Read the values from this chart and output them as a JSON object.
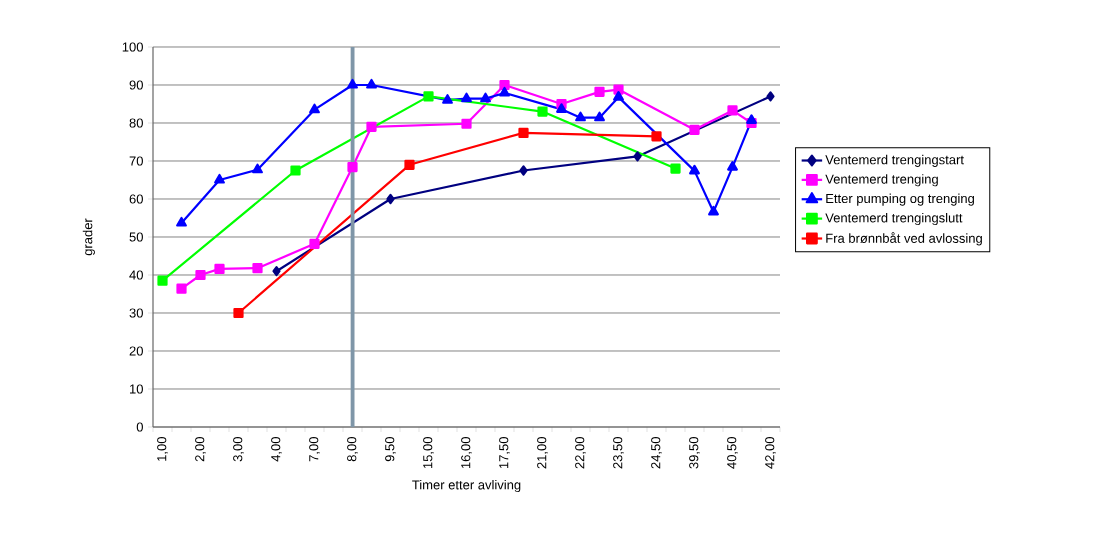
{
  "chart_data": {
    "type": "line",
    "xlabel": "Timer etter avliving",
    "ylabel": "grader",
    "categories": [
      "1,00",
      null,
      "2,00",
      null,
      "3,00",
      null,
      "4,00",
      null,
      "7,00",
      null,
      "8,00",
      null,
      "9,50",
      null,
      "15,00",
      null,
      "16,00",
      null,
      "17,50",
      null,
      "21,00",
      null,
      "22,00",
      null,
      "23,50",
      null,
      "24,50",
      null,
      "39,50",
      null,
      "40,50",
      null,
      "42,00"
    ],
    "series": [
      {
        "name": "Ventemerd trengingstart",
        "color": "#000080",
        "marker": "diamond",
        "values": [
          null,
          null,
          null,
          null,
          null,
          null,
          41,
          null,
          null,
          null,
          null,
          null,
          60,
          null,
          null,
          null,
          null,
          null,
          null,
          67.5,
          null,
          null,
          null,
          null,
          null,
          71.2,
          null,
          null,
          null,
          null,
          null,
          null,
          87
        ]
      },
      {
        "name": "Ventemerd trenging",
        "color": "#ff00ff",
        "marker": "square",
        "values": [
          null,
          36.4,
          40,
          41.6,
          null,
          41.8,
          null,
          null,
          48.2,
          null,
          68.4,
          79,
          null,
          null,
          null,
          null,
          79.8,
          null,
          90,
          null,
          null,
          85,
          null,
          88.2,
          88.8,
          null,
          null,
          null,
          78.2,
          null,
          83.3,
          80,
          null
        ]
      },
      {
        "name": "Etter pumping og trenging",
        "color": "#0000ff",
        "marker": "triangle",
        "values": [
          null,
          53.7,
          null,
          65,
          null,
          67.7,
          null,
          null,
          83.5,
          null,
          90,
          90,
          null,
          null,
          null,
          86,
          86.4,
          86.4,
          87.9,
          null,
          null,
          83.6,
          81.4,
          81.4,
          86.8,
          null,
          null,
          null,
          67.4,
          56.6,
          68.4,
          80.7,
          null
        ]
      },
      {
        "name": "Ventemerd trengingslutt",
        "color": "#00ff00",
        "marker": "square",
        "values": [
          38.5,
          null,
          null,
          null,
          null,
          null,
          null,
          67.5,
          null,
          null,
          null,
          null,
          null,
          null,
          87,
          null,
          null,
          null,
          null,
          null,
          83,
          null,
          null,
          null,
          null,
          null,
          null,
          68,
          null,
          null,
          null,
          null,
          null
        ]
      },
      {
        "name": "Fra brønnbåt ved avlossing",
        "color": "#ff0000",
        "marker": "square",
        "values": [
          null,
          null,
          null,
          null,
          30,
          null,
          null,
          null,
          null,
          null,
          null,
          null,
          null,
          69,
          null,
          null,
          null,
          null,
          null,
          77.4,
          null,
          null,
          null,
          null,
          null,
          null,
          76.5,
          null,
          null,
          null,
          null,
          null,
          null
        ]
      }
    ],
    "ylim": [
      0,
      100
    ],
    "yticks": [
      0,
      10,
      20,
      30,
      40,
      50,
      60,
      70,
      80,
      90,
      100
    ],
    "ref_lines": [
      {
        "axis": "x",
        "value": "8,00",
        "color": "#7f96a8"
      }
    ],
    "grid": "y",
    "legend": "right",
    "line_style": "solid"
  }
}
